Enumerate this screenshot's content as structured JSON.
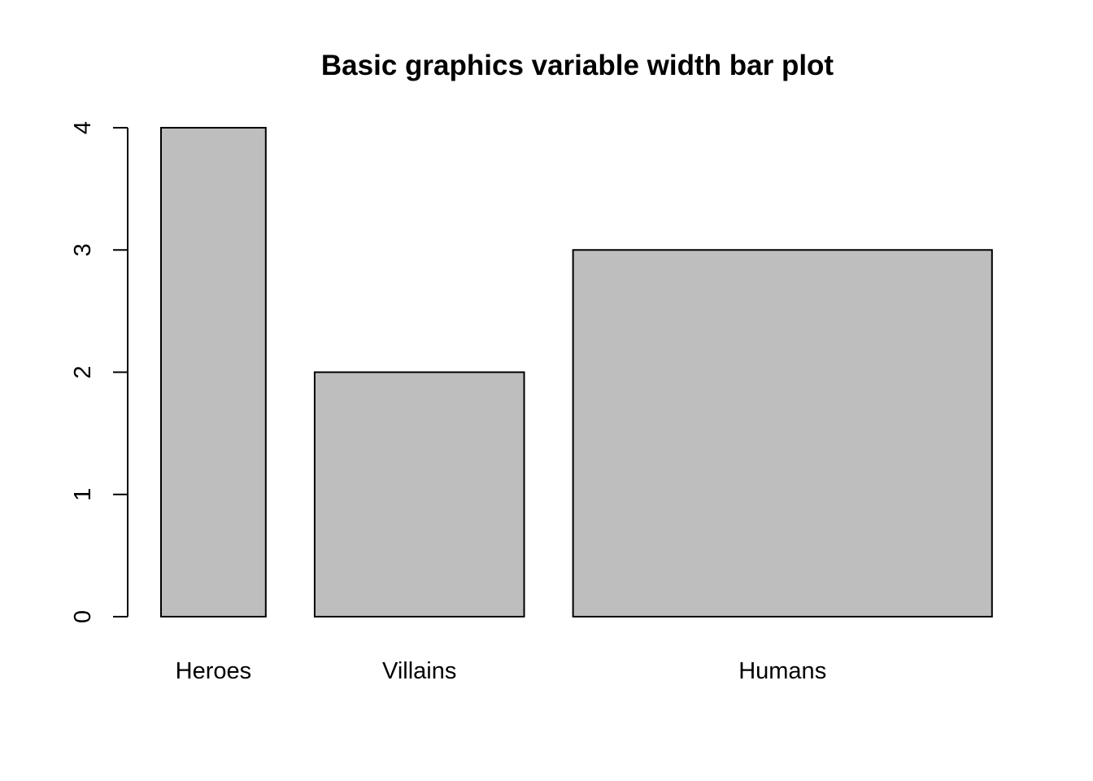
{
  "chart_data": {
    "type": "bar",
    "title": "Basic graphics variable width bar plot",
    "xlabel": "",
    "ylabel": "",
    "categories": [
      "Heroes",
      "Villains",
      "Humans"
    ],
    "values": [
      4,
      2,
      3
    ],
    "widths": [
      1,
      2,
      4
    ],
    "ylim": [
      0,
      4
    ],
    "yticks": [
      0,
      1,
      2,
      3,
      4
    ],
    "grid": false,
    "legend": "none",
    "bar_fill": "#bebebe",
    "bar_stroke": "#000000"
  }
}
